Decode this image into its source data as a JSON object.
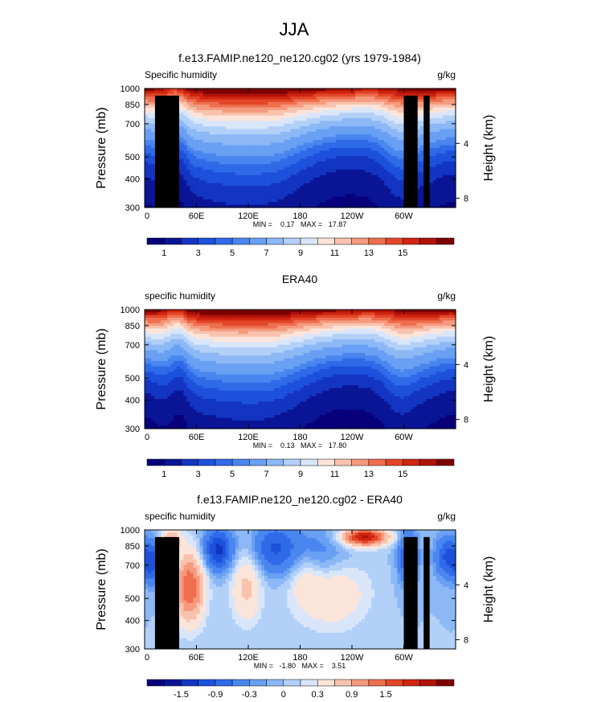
{
  "figure_title": "JJA",
  "colors": {
    "abs_palette": [
      "#08007a",
      "#0a1596",
      "#1335c2",
      "#1d51dc",
      "#2f6be8",
      "#4a86ef",
      "#6aa0f3",
      "#8cb8f6",
      "#b2d0f8",
      "#d9e6fa",
      "#fbe4da",
      "#f8c2ad",
      "#f59a7e",
      "#ee6f4f",
      "#e24628",
      "#cf2511",
      "#b0130a",
      "#7d0000"
    ],
    "diff_palette": [
      "#08007a",
      "#0a1596",
      "#1335c2",
      "#1d51dc",
      "#2f6be8",
      "#4a86ef",
      "#6aa0f3",
      "#8cb8f6",
      "#b2d0f8",
      "#d9e6fa",
      "#fbe4da",
      "#f8c2ad",
      "#f59a7e",
      "#ee6f4f",
      "#e24628",
      "#cf2511",
      "#b0130a",
      "#7d0000"
    ],
    "land_mask": "#000000"
  },
  "chart_data": [
    {
      "type": "heatmap",
      "title": "f.e13.FAMIP.ne120_ne120.cg02 (yrs 1979-1984)",
      "left_label": "Specific humidity",
      "units": "g/kg",
      "ylabel": "Pressure (mb)",
      "ylabel_right": "Height (km)",
      "yticks": [
        "300",
        "400",
        "500",
        "700",
        "850",
        "1000"
      ],
      "ytick_values": [
        300,
        400,
        500,
        700,
        850,
        1000
      ],
      "right_ticks": [
        "8",
        "4"
      ],
      "right_tick_values": [
        8,
        4
      ],
      "xticks": [
        "0",
        "60E",
        "120E",
        "180",
        "120W",
        "60W"
      ],
      "xtick_values": [
        0,
        60,
        120,
        180,
        240,
        300
      ],
      "xlim": [
        0,
        360
      ],
      "ylim": [
        1000,
        300
      ],
      "stats": "MIN =    0.17   MAX =   17.87",
      "colorbar_labels": [
        "1",
        "3",
        "5",
        "7",
        "9",
        "11",
        "13",
        "15"
      ],
      "levels": [
        0.5,
        1,
        1.5,
        2,
        2.5,
        3,
        4,
        5,
        6,
        7,
        8,
        9,
        10,
        11,
        12,
        13,
        14
      ],
      "field": "model"
    },
    {
      "type": "heatmap",
      "title": "ERA40",
      "left_label": "specific humidity",
      "units": "g/kg",
      "ylabel": "Pressure (mb)",
      "ylabel_right": "Height (km)",
      "yticks": [
        "300",
        "400",
        "500",
        "700",
        "850",
        "1000"
      ],
      "ytick_values": [
        300,
        400,
        500,
        700,
        850,
        1000
      ],
      "right_ticks": [
        "8",
        "4"
      ],
      "right_tick_values": [
        8,
        4
      ],
      "xticks": [
        "0",
        "60E",
        "120E",
        "180",
        "120W",
        "60W"
      ],
      "xtick_values": [
        0,
        60,
        120,
        180,
        240,
        300
      ],
      "xlim": [
        0,
        360
      ],
      "ylim": [
        1000,
        300
      ],
      "stats": "MIN =    0.13   MAX =   17.80",
      "colorbar_labels": [
        "1",
        "3",
        "5",
        "7",
        "9",
        "11",
        "13",
        "15"
      ],
      "levels": [
        0.5,
        1,
        1.5,
        2,
        2.5,
        3,
        4,
        5,
        6,
        7,
        8,
        9,
        10,
        11,
        12,
        13,
        14
      ],
      "field": "era"
    },
    {
      "type": "heatmap",
      "title": "f.e13.FAMIP.ne120_ne120.cg02 - ERA40",
      "left_label": "specific humidity",
      "units": "g/kg",
      "ylabel": "Pressure (mb)",
      "ylabel_right": "Height (km)",
      "yticks": [
        "300",
        "400",
        "500",
        "700",
        "850",
        "1000"
      ],
      "ytick_values": [
        300,
        400,
        500,
        700,
        850,
        1000
      ],
      "right_ticks": [
        "8",
        "4"
      ],
      "right_tick_values": [
        8,
        4
      ],
      "xticks": [
        "0",
        "60E",
        "120E",
        "180",
        "120W",
        "60W"
      ],
      "xtick_values": [
        0,
        60,
        120,
        180,
        240,
        300
      ],
      "xlim": [
        0,
        360
      ],
      "ylim": [
        1000,
        300
      ],
      "stats": "MIN =   -1.80   MAX =    3.51",
      "colorbar_labels": [
        "-1.5",
        "-0.9",
        "-0.3",
        "0",
        "0.3",
        "0.9",
        "1.5"
      ],
      "levels": [
        -1.8,
        -1.5,
        -1.2,
        -0.9,
        -0.6,
        -0.3,
        -0.15,
        0,
        0.15,
        0.3,
        0.6,
        0.9,
        1.2,
        1.5,
        1.8,
        2.1,
        2.4
      ],
      "field": "diff"
    }
  ]
}
